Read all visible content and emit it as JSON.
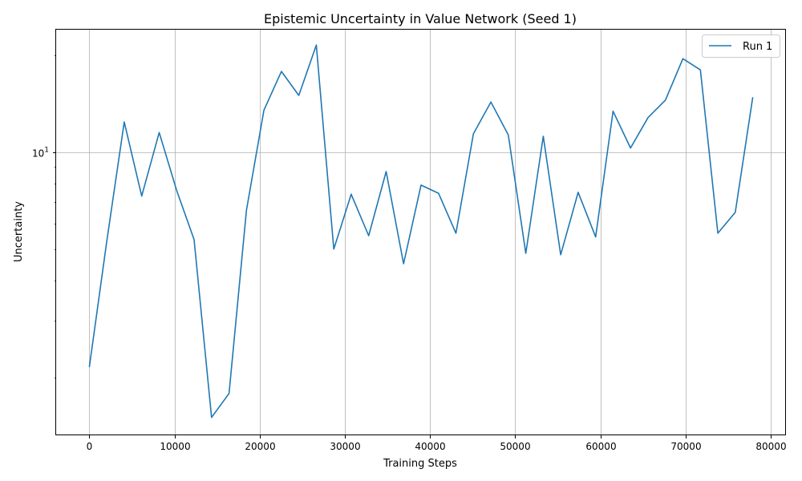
{
  "chart_data": {
    "type": "line",
    "title": "Epistemic Uncertainty in Value Network (Seed 1)",
    "xlabel": "Training Steps",
    "ylabel": "Uncertainty",
    "xlim": [
      -3900,
      81800
    ],
    "ylim": [
      1.32,
      24.0
    ],
    "yscale": "log",
    "xticks": [
      0,
      10000,
      20000,
      30000,
      40000,
      50000,
      60000,
      70000,
      80000
    ],
    "xtick_labels": [
      "0",
      "10000",
      "20000",
      "30000",
      "40000",
      "50000",
      "60000",
      "70000",
      "80000"
    ],
    "yticks": [
      10
    ],
    "ytick_labels": [
      "10"
    ],
    "ytick_exponent_labels": [
      "1"
    ],
    "grid": true,
    "legend_position": "top-right",
    "line_color": "#1f77b4",
    "series": [
      {
        "name": "Run 1",
        "x": [
          0,
          2050,
          4100,
          6150,
          8200,
          10250,
          12300,
          14350,
          16400,
          18450,
          20500,
          22550,
          24600,
          26650,
          28700,
          30750,
          32800,
          34850,
          36900,
          38950,
          41000,
          43050,
          45100,
          47150,
          49200,
          51250,
          53300,
          55350,
          57400,
          59450,
          61500,
          63550,
          65600,
          67650,
          69700,
          71750,
          73800,
          75850,
          77900
        ],
        "y": [
          2.15,
          5.3,
          12.4,
          7.3,
          11.5,
          7.6,
          5.35,
          1.5,
          1.78,
          6.6,
          13.5,
          17.8,
          15.0,
          21.5,
          5.0,
          7.4,
          5.5,
          8.7,
          4.5,
          7.9,
          7.45,
          5.6,
          11.4,
          14.3,
          11.3,
          4.85,
          11.2,
          4.8,
          7.5,
          5.45,
          13.4,
          10.3,
          12.8,
          14.5,
          19.5,
          18.0,
          5.6,
          6.5,
          14.8
        ]
      }
    ]
  }
}
